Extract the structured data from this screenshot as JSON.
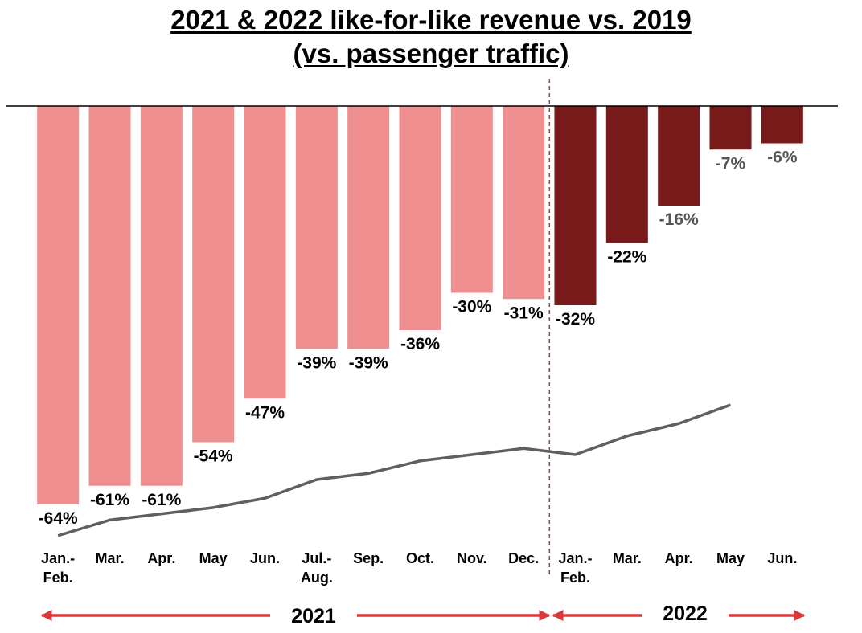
{
  "title_line1": "2021 & 2022 like-for-like revenue vs. 2019",
  "title_line2": "(vs. passenger traffic)",
  "colors": {
    "bar_2021": "#EF8E8F",
    "bar_2022": "#781A1A",
    "traffic_line": "#5F5F5F",
    "arrow": "#D9393A",
    "divider": "#8B4A3A",
    "label_2021": "#000000",
    "label_2022_dark": "#000000",
    "label_2022_light": "#555555"
  },
  "chart_data": {
    "type": "bar",
    "ylim": [
      -70,
      0
    ],
    "categories": [
      [
        "Jan.-",
        "Feb."
      ],
      [
        "Mar."
      ],
      [
        "Apr."
      ],
      [
        "May"
      ],
      [
        "Jun."
      ],
      [
        "Jul.-",
        "Aug."
      ],
      [
        "Sep."
      ],
      [
        "Oct."
      ],
      [
        "Nov."
      ],
      [
        "Dec."
      ],
      [
        "Jan.-",
        "Feb."
      ],
      [
        "Mar."
      ],
      [
        "Apr."
      ],
      [
        "May"
      ],
      [
        "Jun."
      ]
    ],
    "years": [
      "2021",
      "2021",
      "2021",
      "2021",
      "2021",
      "2021",
      "2021",
      "2021",
      "2021",
      "2021",
      "2022",
      "2022",
      "2022",
      "2022",
      "2022"
    ],
    "series": [
      {
        "values": [
          -64,
          -61,
          -61,
          -54,
          -47,
          -39,
          -39,
          -36,
          -30,
          -31,
          -32,
          -22,
          -16,
          -7,
          -6
        ],
        "labels": [
          "-64%",
          "-61%",
          "-61%",
          "-54%",
          "-47%",
          "-39%",
          "-39%",
          "-36%",
          "-30%",
          "-31%",
          "-32%",
          "-22%",
          "-16%",
          "-7%",
          "-6%"
        ]
      }
    ],
    "traffic_line": {
      "values": [
        -69,
        -66.5,
        -65.5,
        -64.5,
        -63,
        -60,
        -59,
        -57,
        -56,
        -55,
        -56,
        -53,
        -51,
        -48,
        null
      ]
    },
    "year_groups": [
      {
        "label": "2021",
        "from": 0,
        "to": 9
      },
      {
        "label": "2022",
        "from": 10,
        "to": 14
      }
    ]
  }
}
